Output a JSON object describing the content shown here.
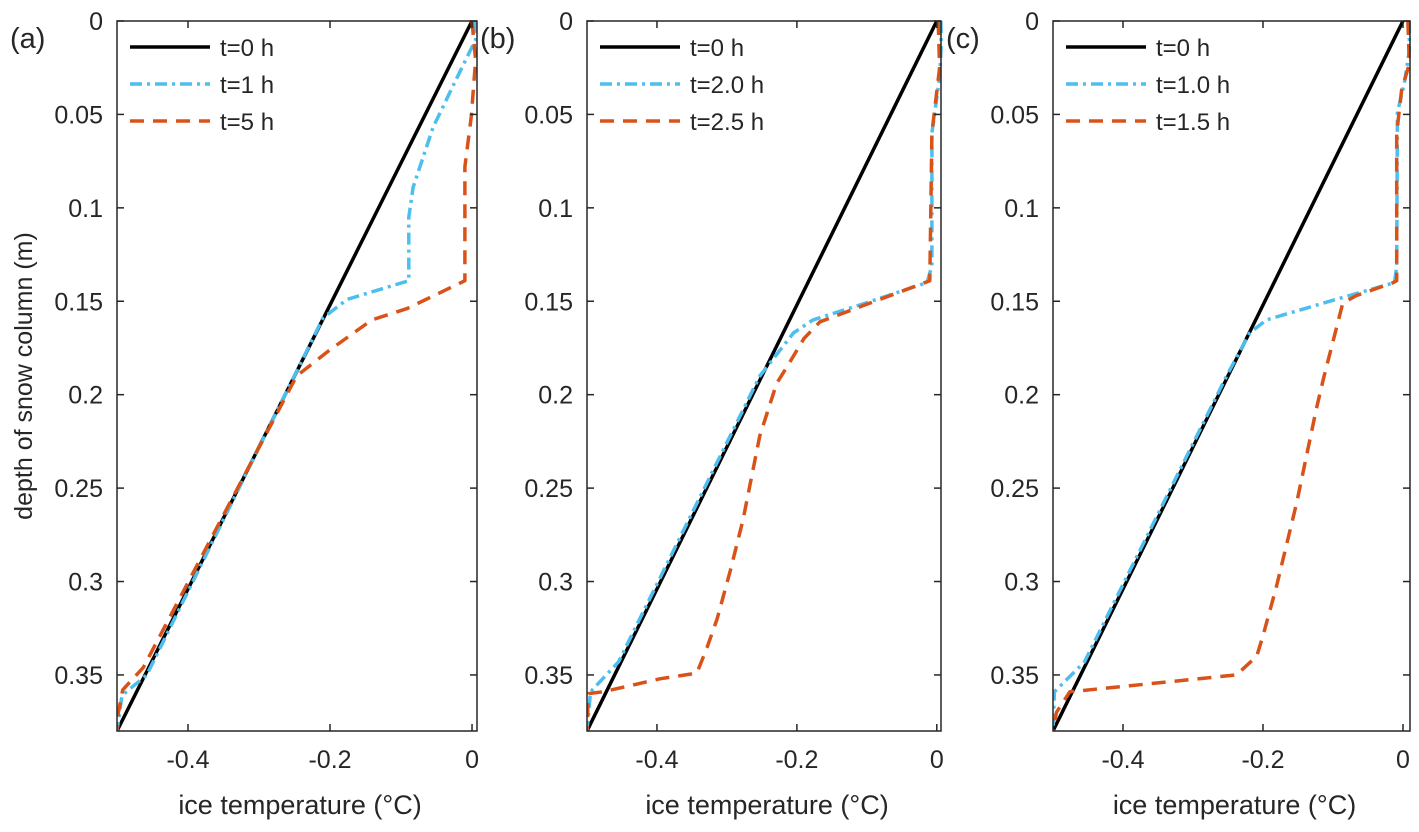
{
  "colors": {
    "t0": "#000000",
    "mid": "#4DBEEE",
    "late": "#D95319",
    "axis": "#262626"
  },
  "chart_data": [
    {
      "type": "line",
      "panel_label": "(a)",
      "xlabel": "ice temperature (°C)",
      "ylabel": "depth of snow column (m)",
      "xlim": [
        -0.5,
        0.007
      ],
      "ylim": [
        0,
        0.38
      ],
      "y_reversed": true,
      "xticks": [
        -0.4,
        -0.2,
        0
      ],
      "xtick_labels": [
        "-0.4",
        "-0.2",
        "0"
      ],
      "yticks": [
        0,
        0.05,
        0.1,
        0.15,
        0.2,
        0.25,
        0.3,
        0.35
      ],
      "ytick_labels": [
        "0",
        "0.05",
        "0.1",
        "0.15",
        "0.2",
        "0.25",
        "0.3",
        "0.35"
      ],
      "legend_position": "top-left",
      "series": [
        {
          "name": "t=0 h",
          "style": "solid",
          "color_key": "t0",
          "x": [
            -0.5,
            0
          ],
          "y": [
            0.38,
            0
          ]
        },
        {
          "name": "t=1 h",
          "style": "dashdot",
          "color_key": "mid",
          "x": [
            0.005,
            0.005,
            -0.022,
            -0.055,
            -0.083,
            -0.089,
            -0.089,
            -0.176,
            -0.21,
            -0.458,
            -0.493,
            -0.5
          ],
          "y": [
            0,
            0.01,
            0.031,
            0.057,
            0.089,
            0.105,
            0.139,
            0.149,
            0.159,
            0.35,
            0.361,
            0.38
          ]
        },
        {
          "name": "t=5 h",
          "style": "dashed",
          "color_key": "late",
          "x": [
            0,
            0.005,
            -0.001,
            -0.01,
            -0.01,
            -0.092,
            -0.141,
            -0.2,
            -0.247,
            -0.463,
            -0.492,
            -0.5,
            -0.5
          ],
          "y": [
            0,
            0.021,
            0.051,
            0.078,
            0.139,
            0.154,
            0.16,
            0.176,
            0.19,
            0.346,
            0.358,
            0.374,
            0.38
          ]
        }
      ]
    },
    {
      "type": "line",
      "panel_label": "(b)",
      "xlabel": "ice temperature (°C)",
      "xlim": [
        -0.5,
        0.006
      ],
      "ylim": [
        0,
        0.38
      ],
      "y_reversed": true,
      "xticks": [
        -0.4,
        -0.2,
        0
      ],
      "xtick_labels": [
        "-0.4",
        "-0.2",
        "0"
      ],
      "yticks": [
        0,
        0.05,
        0.1,
        0.15,
        0.2,
        0.25,
        0.3,
        0.35
      ],
      "ytick_labels": [
        "0",
        "0.05",
        "0.1",
        "0.15",
        "0.2",
        "0.25",
        "0.3",
        "0.35"
      ],
      "legend_position": "top-left",
      "series": [
        {
          "name": "t=0 h",
          "style": "solid",
          "color_key": "t0",
          "x": [
            -0.5,
            0
          ],
          "y": [
            0.38,
            0
          ]
        },
        {
          "name": "t=2.0 h",
          "style": "dashdot",
          "color_key": "mid",
          "x": [
            0.006,
            0.006,
            0.004,
            -0.007,
            -0.007,
            -0.014,
            -0.11,
            -0.177,
            -0.205,
            -0.253,
            -0.455,
            -0.495,
            -0.5
          ],
          "y": [
            0,
            0.016,
            0.03,
            0.06,
            0.131,
            0.14,
            0.152,
            0.16,
            0.167,
            0.19,
            0.343,
            0.359,
            0.38
          ]
        },
        {
          "name": "t=2.5 h",
          "style": "dashed",
          "color_key": "late",
          "x": [
            0.002,
            0.004,
            -0.007,
            -0.01,
            -0.017,
            -0.11,
            -0.167,
            -0.19,
            -0.214,
            -0.229,
            -0.253,
            -0.277,
            -0.295,
            -0.314,
            -0.329,
            -0.343,
            -0.395,
            -0.477,
            -0.498,
            -0.5
          ],
          "y": [
            0,
            0.025,
            0.06,
            0.139,
            0.14,
            0.153,
            0.161,
            0.17,
            0.185,
            0.194,
            0.222,
            0.267,
            0.294,
            0.32,
            0.336,
            0.349,
            0.352,
            0.359,
            0.36,
            0.38
          ]
        }
      ]
    },
    {
      "type": "line",
      "panel_label": "(c)",
      "xlabel": "ice temperature (°C)",
      "xlim": [
        -0.5,
        0.01
      ],
      "ylim": [
        0,
        0.38
      ],
      "y_reversed": true,
      "xticks": [
        -0.4,
        -0.2,
        0
      ],
      "xtick_labels": [
        "-0.4",
        "-0.2",
        "0"
      ],
      "yticks": [
        0,
        0.05,
        0.1,
        0.15,
        0.2,
        0.25,
        0.3,
        0.35
      ],
      "ytick_labels": [
        "0",
        "0.05",
        "0.1",
        "0.15",
        "0.2",
        "0.25",
        "0.3",
        "0.35"
      ],
      "legend_position": "top-left",
      "series": [
        {
          "name": "t=0 h",
          "style": "solid",
          "color_key": "t0",
          "x": [
            -0.5,
            0
          ],
          "y": [
            0.38,
            0
          ]
        },
        {
          "name": "t=1.0 h",
          "style": "dashdot",
          "color_key": "mid",
          "x": [
            0.009,
            0.009,
            0.002,
            -0.008,
            -0.009,
            -0.012,
            -0.105,
            -0.195,
            -0.219,
            -0.252,
            -0.455,
            -0.498,
            -0.5
          ],
          "y": [
            0,
            0.016,
            0.033,
            0.049,
            0.131,
            0.14,
            0.15,
            0.16,
            0.167,
            0.19,
            0.343,
            0.359,
            0.38
          ]
        },
        {
          "name": "t=1.5 h",
          "style": "dashed",
          "color_key": "late",
          "x": [
            0.007,
            0.009,
            -0.002,
            -0.009,
            -0.009,
            -0.014,
            -0.067,
            -0.086,
            -0.114,
            -0.124,
            -0.152,
            -0.181,
            -0.2,
            -0.209,
            -0.238,
            -0.343,
            -0.476,
            -0.495,
            -0.5
          ],
          "y": [
            0,
            0.023,
            0.037,
            0.06,
            0.139,
            0.14,
            0.147,
            0.151,
            0.192,
            0.208,
            0.258,
            0.303,
            0.329,
            0.34,
            0.35,
            0.354,
            0.359,
            0.37,
            0.38
          ]
        }
      ]
    }
  ]
}
